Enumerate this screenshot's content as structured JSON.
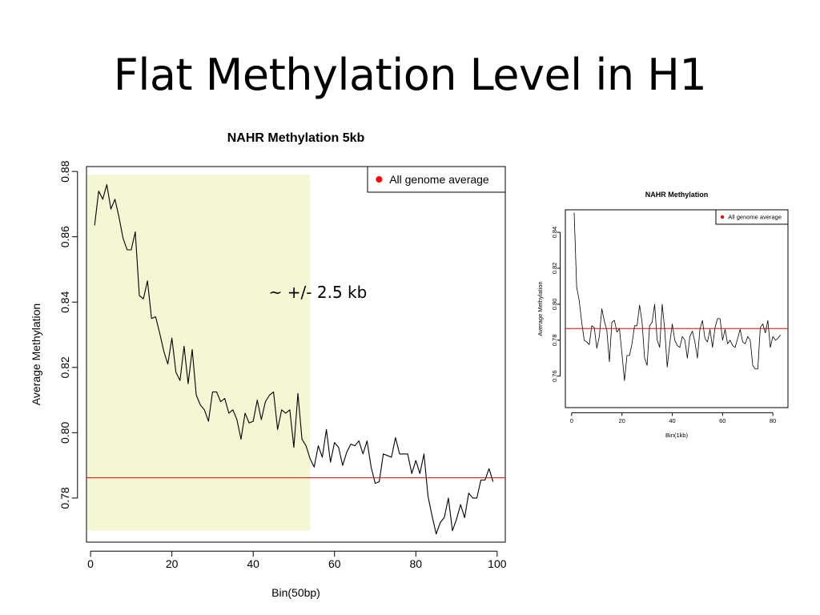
{
  "slide": {
    "title": "Flat Methylation Level in H1",
    "annotation": "~ +/- 2.5 kb"
  },
  "colors": {
    "line": "#000000",
    "reference_line": "#ff0000",
    "highlight": "#f5f6d4",
    "legend_dot": "#ff0000"
  },
  "chart_data": [
    {
      "type": "line",
      "title": "NAHR Methylation 5kb",
      "xlabel": "Bin(50bp)",
      "ylabel": "Average Methylation",
      "xlim": [
        -1,
        102
      ],
      "ylim": [
        0.7665,
        0.8815
      ],
      "xticks": [
        0,
        20,
        40,
        60,
        80,
        100
      ],
      "yticks": [
        0.78,
        0.8,
        0.82,
        0.84,
        0.86,
        0.88
      ],
      "ytick_labels": [
        "0.78",
        "0.80",
        "0.82",
        "0.84",
        "0.86",
        "0.88"
      ],
      "grid": false,
      "legend": {
        "position": "top-right",
        "entries": [
          "All genome average"
        ]
      },
      "reference_line": {
        "name": "All genome average",
        "y": 0.7862
      },
      "highlight_region": {
        "x": [
          -0.8,
          54
        ],
        "y": [
          0.77,
          0.879
        ]
      },
      "series": [
        {
          "x": [
            1,
            2,
            3,
            4,
            5,
            6,
            7,
            8,
            9,
            10,
            11,
            12,
            13,
            14,
            15,
            16,
            17,
            18,
            19,
            20,
            21,
            22,
            23,
            24,
            25,
            26,
            27,
            28,
            29,
            30,
            31,
            32,
            33,
            34,
            35,
            36,
            37,
            38,
            39,
            40,
            41,
            42,
            43,
            44,
            45,
            46,
            47,
            48,
            49,
            50,
            51,
            52,
            53,
            54,
            55,
            56,
            57,
            58,
            59,
            60,
            61,
            62,
            63,
            64,
            65,
            66,
            67,
            68,
            69,
            70,
            71,
            72,
            73,
            74,
            75,
            76,
            77,
            78,
            79,
            80,
            81,
            82,
            83,
            84,
            85,
            86,
            87,
            88,
            89,
            90,
            91,
            92,
            93,
            94,
            95,
            96,
            97,
            98,
            99
          ],
          "values": [
            0.8635,
            0.874,
            0.8715,
            0.876,
            0.8685,
            0.8715,
            0.866,
            0.8595,
            0.856,
            0.856,
            0.8615,
            0.842,
            0.841,
            0.8465,
            0.835,
            0.8355,
            0.8305,
            0.825,
            0.821,
            0.829,
            0.8185,
            0.816,
            0.8265,
            0.815,
            0.8255,
            0.8115,
            0.8085,
            0.807,
            0.8035,
            0.8125,
            0.8125,
            0.8095,
            0.8105,
            0.806,
            0.807,
            0.804,
            0.798,
            0.806,
            0.803,
            0.8035,
            0.81,
            0.804,
            0.8095,
            0.8115,
            0.8125,
            0.801,
            0.807,
            0.806,
            0.807,
            0.7955,
            0.812,
            0.798,
            0.796,
            0.792,
            0.7895,
            0.796,
            0.7925,
            0.801,
            0.791,
            0.797,
            0.7955,
            0.79,
            0.794,
            0.7965,
            0.796,
            0.7975,
            0.7935,
            0.7975,
            0.7895,
            0.7845,
            0.785,
            0.7935,
            0.793,
            0.7925,
            0.7985,
            0.7935,
            0.7935,
            0.7935,
            0.7875,
            0.7915,
            0.7875,
            0.7935,
            0.7805,
            0.7745,
            0.769,
            0.7725,
            0.774,
            0.78,
            0.77,
            0.7735,
            0.778,
            0.774,
            0.7815,
            0.78,
            0.78,
            0.7855,
            0.7855,
            0.789,
            0.785
          ]
        }
      ]
    },
    {
      "type": "line",
      "title": "NAHR Methylation",
      "xlabel": "Bin(1kb)",
      "ylabel": "Average Methylation",
      "xlim": [
        -2.5,
        86
      ],
      "ylim": [
        0.7425,
        0.8525
      ],
      "xticks": [
        0,
        20,
        40,
        60,
        80
      ],
      "yticks": [
        0.76,
        0.78,
        0.8,
        0.82,
        0.84
      ],
      "ytick_labels": [
        "0.76",
        "0.78",
        "0.80",
        "0.82",
        "0.84"
      ],
      "grid": false,
      "legend": {
        "position": "top-right",
        "entries": [
          "All genome average"
        ]
      },
      "reference_line": {
        "name": "All genome average",
        "y": 0.7865
      },
      "series": [
        {
          "x": [
            1,
            2,
            3,
            4,
            5,
            6,
            7,
            8,
            9,
            10,
            11,
            12,
            13,
            14,
            15,
            16,
            17,
            18,
            19,
            20,
            21,
            22,
            23,
            24,
            25,
            26,
            27,
            28,
            29,
            30,
            31,
            32,
            33,
            34,
            35,
            36,
            37,
            38,
            39,
            40,
            41,
            42,
            43,
            44,
            45,
            46,
            47,
            48,
            49,
            50,
            51,
            52,
            53,
            54,
            55,
            56,
            57,
            58,
            59,
            60,
            61,
            62,
            63,
            64,
            65,
            66,
            67,
            68,
            69,
            70,
            71,
            72,
            73,
            74,
            75,
            76,
            77,
            78,
            79,
            80,
            81,
            82,
            83
          ],
          "values": [
            0.851,
            0.8095,
            0.802,
            0.79,
            0.78,
            0.779,
            0.7775,
            0.788,
            0.787,
            0.7755,
            0.782,
            0.7975,
            0.7905,
            0.7855,
            0.768,
            0.79,
            0.791,
            0.7845,
            0.7865,
            0.7725,
            0.7575,
            0.7715,
            0.7715,
            0.778,
            0.788,
            0.788,
            0.7995,
            0.79,
            0.77,
            0.766,
            0.788,
            0.79,
            0.8,
            0.78,
            0.776,
            0.8,
            0.786,
            0.765,
            0.778,
            0.789,
            0.78,
            0.777,
            0.776,
            0.782,
            0.78,
            0.77,
            0.782,
            0.785,
            0.779,
            0.77,
            0.786,
            0.791,
            0.781,
            0.779,
            0.786,
            0.776,
            0.787,
            0.792,
            0.792,
            0.78,
            0.786,
            0.778,
            0.78,
            0.777,
            0.776,
            0.781,
            0.786,
            0.779,
            0.778,
            0.782,
            0.78,
            0.766,
            0.764,
            0.764,
            0.787,
            0.789,
            0.784,
            0.791,
            0.776,
            0.782,
            0.78,
            0.781,
            0.783
          ]
        }
      ]
    }
  ]
}
